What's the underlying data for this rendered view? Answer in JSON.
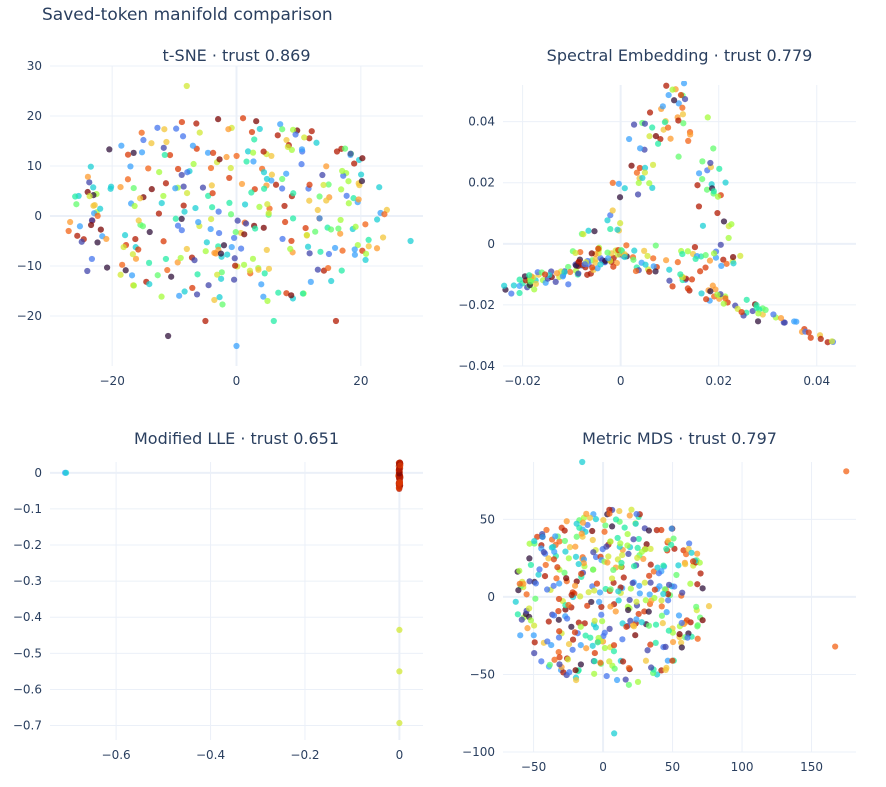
{
  "title": "Saved-token manifold comparison",
  "colorscale": [
    "#30123b",
    "#4145ab",
    "#4675ed",
    "#39a2fc",
    "#1bcfd4",
    "#24eca6",
    "#61fc6c",
    "#a4fc3b",
    "#d1e834",
    "#f3c63a",
    "#fe9b2d",
    "#f36315",
    "#d93806",
    "#b11901",
    "#7a0403"
  ],
  "chart_data": [
    {
      "type": "scatter",
      "title": "t-SNE · trust 0.869",
      "xlim": [
        -30,
        30
      ],
      "ylim": [
        -30,
        30
      ],
      "xticks": [
        -20,
        0,
        20
      ],
      "yticks": [
        -20,
        -10,
        0,
        10,
        20,
        30
      ],
      "cloud": {
        "kind": "ellipse",
        "cx": -1,
        "cy": 1,
        "rx": 26,
        "ry": 19,
        "n": 330
      },
      "points": [
        {
          "x": -8,
          "y": 26,
          "c": 0.6
        },
        {
          "x": 0,
          "y": -26,
          "c": 0.2
        },
        {
          "x": -11,
          "y": -24,
          "c": 0.0
        },
        {
          "x": -27,
          "y": -3,
          "c": 0.8
        },
        {
          "x": 28,
          "y": -5,
          "c": 0.3
        },
        {
          "x": 16,
          "y": -21,
          "c": 0.9
        },
        {
          "x": 6,
          "y": -21,
          "c": 0.35
        },
        {
          "x": -5,
          "y": -21,
          "c": 0.95
        },
        {
          "x": -24,
          "y": -11,
          "c": 0.05
        },
        {
          "x": 17,
          "y": 9,
          "c": 0.5
        }
      ]
    },
    {
      "type": "scatter",
      "title": "Spectral Embedding · trust 0.779",
      "xlim": [
        -0.024,
        0.048
      ],
      "ylim": [
        -0.04,
        0.052
      ],
      "xticks": [
        -0.02,
        0,
        0.02,
        0.04
      ],
      "yticks": [
        -0.04,
        -0.02,
        0,
        0.02,
        0.04
      ],
      "cloud": {
        "kind": "arms",
        "arms": [
          {
            "from": [
              -0.022,
              -0.014
            ],
            "to": [
              0.0,
              -0.004
            ],
            "n": 90,
            "spread": 0.0025
          },
          {
            "from": [
              0.0,
              -0.004
            ],
            "to": [
              0.046,
              -0.034
            ],
            "n": 75,
            "spread": 0.0022
          },
          {
            "from": [
              -0.005,
              0.0
            ],
            "to": [
              0.012,
              0.05
            ],
            "n": 55,
            "spread": 0.004
          },
          {
            "from": [
              0.012,
              0.05
            ],
            "to": [
              0.022,
              0.005
            ],
            "n": 35,
            "spread": 0.003
          },
          {
            "from": [
              -0.01,
              -0.002
            ],
            "to": [
              0.024,
              -0.006
            ],
            "n": 45,
            "spread": 0.003
          }
        ]
      },
      "points": []
    },
    {
      "type": "scatter",
      "title": "Modified LLE · trust 0.651",
      "xlim": [
        -0.74,
        0.05
      ],
      "ylim": [
        -0.74,
        0.03
      ],
      "xticks": [
        -0.6,
        -0.4,
        -0.2,
        0
      ],
      "yticks": [
        -0.7,
        -0.6,
        -0.5,
        -0.4,
        -0.3,
        -0.2,
        -0.1,
        0
      ],
      "cloud": {
        "kind": "column",
        "x": 0.0,
        "y0": -0.045,
        "y1": 0.03,
        "n": 60
      },
      "points": [
        {
          "x": -0.708,
          "y": 0.0,
          "c": 0.22
        },
        {
          "x": -0.706,
          "y": 0.0,
          "c": 0.25
        },
        {
          "x": 0.0,
          "y": -0.435,
          "c": 0.55
        },
        {
          "x": 0.0,
          "y": -0.55,
          "c": 0.6
        },
        {
          "x": 0.0,
          "y": -0.693,
          "c": 0.58
        }
      ]
    },
    {
      "type": "scatter",
      "title": "Metric MDS · trust 0.797",
      "xlim": [
        -72,
        182
      ],
      "ylim": [
        -100,
        87
      ],
      "xticks": [
        -50,
        0,
        50,
        100,
        150
      ],
      "yticks": [
        -100,
        -50,
        0,
        50
      ],
      "cloud": {
        "kind": "ellipse",
        "cx": 5,
        "cy": 0,
        "rx": 72,
        "ry": 58,
        "n": 420
      },
      "points": [
        {
          "x": -15,
          "y": 87,
          "c": 0.25
        },
        {
          "x": 175,
          "y": 81,
          "c": 0.82
        },
        {
          "x": 167,
          "y": -32,
          "c": 0.82
        },
        {
          "x": 8,
          "y": -88,
          "c": 0.28
        }
      ]
    }
  ]
}
